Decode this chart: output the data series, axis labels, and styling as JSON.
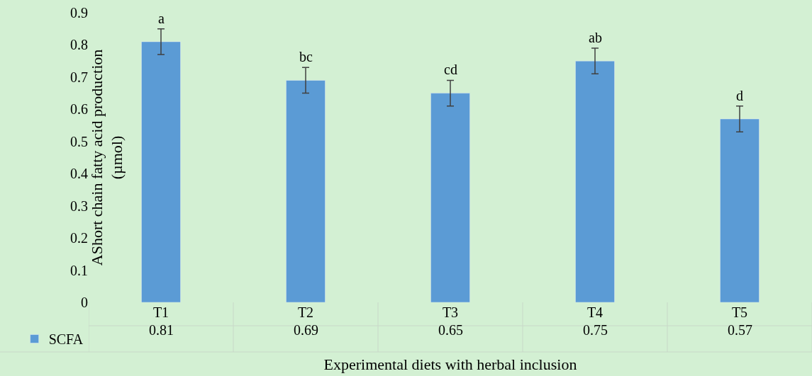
{
  "chart_data": {
    "type": "bar",
    "xlabel": "Experimental diets with herbal inclusion",
    "ylabel": "AShort chain fatty acid production\n(µmol)",
    "categories": [
      "T1",
      "T2",
      "T3",
      "T4",
      "T5"
    ],
    "series": [
      {
        "name": "SCFA",
        "color": "#5b9bd5",
        "values": [
          0.81,
          0.69,
          0.65,
          0.75,
          0.57
        ],
        "errors": [
          0.04,
          0.04,
          0.04,
          0.04,
          0.04
        ]
      }
    ],
    "ylim": [
      0,
      0.9
    ],
    "yticks": [
      0,
      0.1,
      0.2,
      0.3,
      0.4,
      0.5,
      0.6,
      0.7,
      0.8,
      0.9
    ],
    "grid": false,
    "legend": "bottom left",
    "data_labels": true,
    "annotations": [
      {
        "text": "a",
        "x": "T1",
        "y": 0.85
      },
      {
        "text": "bc",
        "x": "T2",
        "y": 0.73
      },
      {
        "text": "cd",
        "x": "T3",
        "y": 0.69
      },
      {
        "text": "ab",
        "x": "T4",
        "y": 0.79
      },
      {
        "text": "d",
        "x": "T5",
        "y": 0.61
      }
    ]
  }
}
